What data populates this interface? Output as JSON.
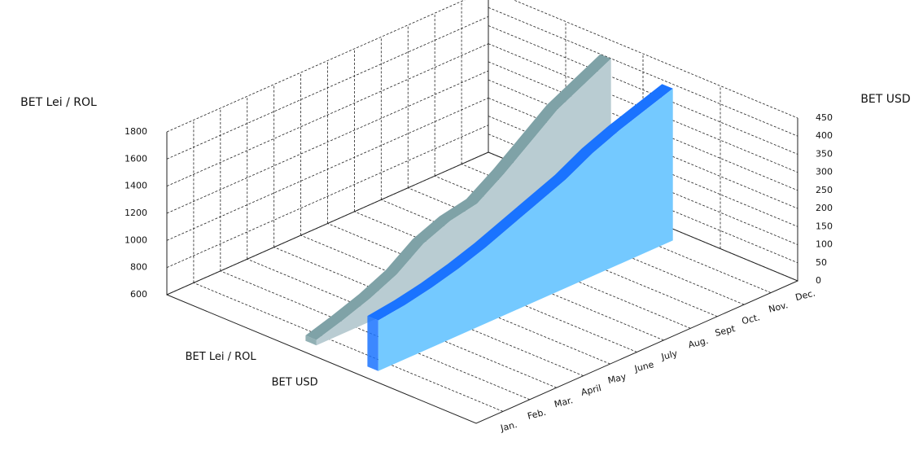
{
  "chart_data": {
    "type": "area3d",
    "y_label": "BET Lei / ROL",
    "y2_label": "BET USD",
    "categories": [
      "Jan.",
      "Feb.",
      "Mar.",
      "April",
      "May",
      "June",
      "July",
      "Aug.",
      "Sept",
      "Oct.",
      "Nov.",
      "Dec."
    ],
    "series": [
      {
        "name": "BET Lei / ROL",
        "color": "#b9ccd2",
        "edge_color": "#7fa2a7",
        "values": [
          640,
          700,
          770,
          860,
          1000,
          1080,
          1120,
          1250,
          1400,
          1550,
          1650,
          1750
        ]
      },
      {
        "name": "BET USD",
        "color": "#74c9ff",
        "edge_color": "#1a73ff",
        "axis": "y2",
        "values": [
          140,
          150,
          165,
          185,
          210,
          240,
          270,
          300,
          340,
          370,
          395,
          420
        ]
      }
    ],
    "ylim": [
      600,
      1800
    ],
    "yticks": [
      600,
      800,
      1000,
      1200,
      1400,
      1600,
      1800
    ],
    "y2lim": [
      0,
      450
    ],
    "y2ticks": [
      0,
      50,
      100,
      150,
      200,
      250,
      300,
      350,
      400,
      450
    ],
    "grid": true
  }
}
